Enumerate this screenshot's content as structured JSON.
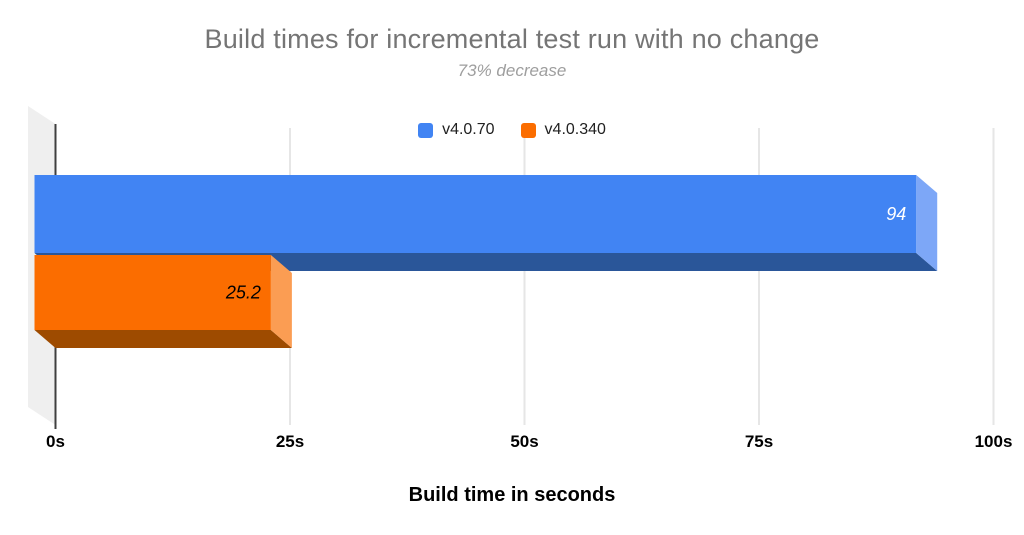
{
  "chart_data": {
    "type": "bar",
    "orientation": "horizontal",
    "effect_3d": true,
    "title": "Build times for incremental test run with no change",
    "subtitle": "73% decrease",
    "xlabel": "Build time in seconds",
    "xlim": [
      0,
      100
    ],
    "grid": true,
    "legend_position": "top",
    "x_ticks": [
      {
        "value": 0,
        "label": "0s"
      },
      {
        "value": 25,
        "label": "25s"
      },
      {
        "value": 50,
        "label": "50s"
      },
      {
        "value": 75,
        "label": "75s"
      },
      {
        "value": 100,
        "label": "100s"
      }
    ],
    "series": [
      {
        "name": "v4.0.70",
        "value": 94,
        "value_label": "94",
        "color": "#4184f3",
        "color_light": "#7da7f7",
        "color_dark": "#2a5699",
        "value_label_color": "#ffffff"
      },
      {
        "name": "v4.0.340",
        "value": 25.2,
        "value_label": "25.2",
        "color": "#fb6d00",
        "color_light": "#fb9d53",
        "color_dark": "#9e4b00",
        "value_label_color": "#000000"
      }
    ],
    "colors": {
      "grid": "#e6e6e6",
      "axis": "#3f3f3f",
      "wall": "#efefef",
      "title": "#757575",
      "subtitle": "#9e9e9e",
      "tick_label": "#000000",
      "axis_title": "#000000",
      "legend_label": "#212121",
      "background": "#ffffff"
    }
  }
}
